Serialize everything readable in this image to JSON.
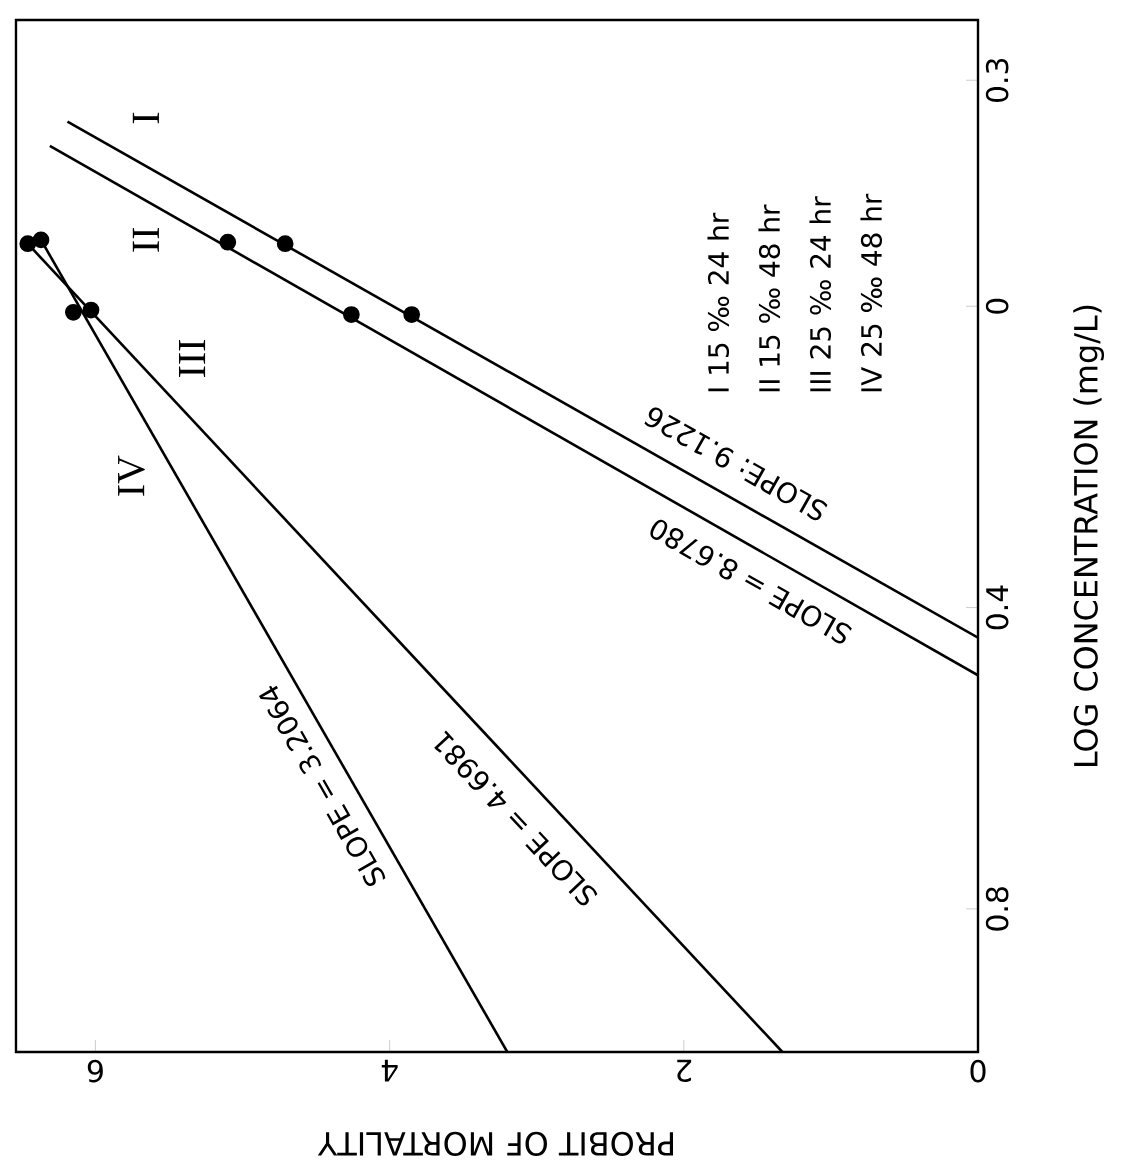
{
  "chart_data": {
    "type": "line",
    "xlabel": "PROBIT OF MORTALITY",
    "ylabel": "LOG CONCENTRATION (mg/L)",
    "xlim": [
      6.54,
      0
    ],
    "ylim": [
      -0.99,
      0.38
    ],
    "xticks": [
      6,
      4,
      2,
      0
    ],
    "yticks": [
      {
        "value": 0.3,
        "label": "0.3"
      },
      0,
      {
        "value": -0.4,
        "label": "0.4"
      },
      {
        "value": -0.8,
        "label": "0.8"
      }
    ],
    "series": [
      {
        "name": "I",
        "color": "#000000",
        "x": [
          6.19,
          0
        ],
        "values": [
          0.245,
          -0.44
        ]
      },
      {
        "name": "II",
        "color": "#000000",
        "x": [
          6.31,
          0
        ],
        "values": [
          0.213,
          -0.49
        ]
      },
      {
        "name": "III",
        "color": "#000000",
        "x": [
          6.46,
          1.33
        ],
        "values": [
          0.083,
          -0.99
        ]
      },
      {
        "name": "IV",
        "color": "#000000",
        "x": [
          6.37,
          3.2
        ],
        "values": [
          0.088,
          -0.99
        ]
      },
      {
        "type": "scatter",
        "color": "#000000",
        "marker": "circle",
        "x": [
          4.71,
          3.85,
          5.1,
          4.26,
          6.46,
          6.03,
          6.37,
          6.15
        ],
        "values": [
          0.083,
          -0.011,
          0.085,
          -0.011,
          0.083,
          -0.005,
          0.088,
          -0.008
        ]
      }
    ],
    "annotations": [
      "I 15 ‰ 24 hr",
      "II 15 ‰ 48 hr",
      "III 25 ‰ 24 hr",
      "IV 25 ‰ 48 hr",
      "SLOPE: 9.1226",
      "SLOPE = 8.6780",
      "SLOPE = 4.6981",
      "SLOPE = 3.2064"
    ]
  }
}
